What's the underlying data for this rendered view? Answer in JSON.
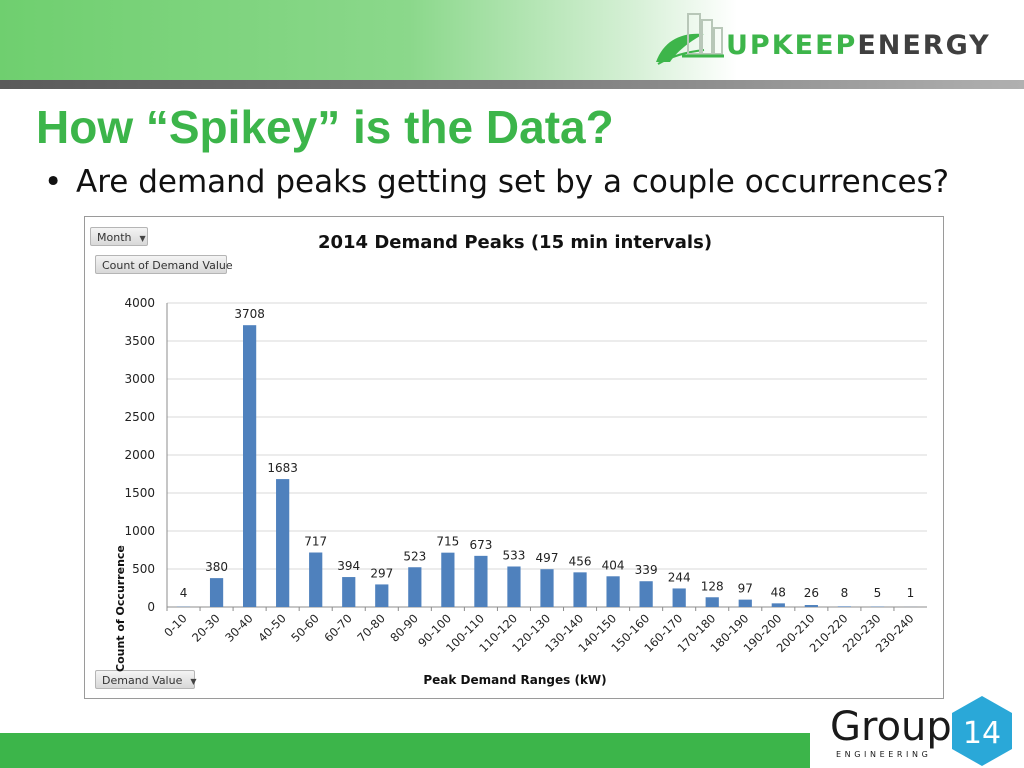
{
  "header": {
    "logo_brand_part1": "UPKEEP",
    "logo_brand_part2": "ENERGY",
    "logo_icon": "building-leaf-icon"
  },
  "slide": {
    "title": "How “Spikey” is the Data?",
    "bullet": "Are demand peaks getting set by a couple occurrences?"
  },
  "pivot_controls": {
    "month_filter_label": "Month",
    "value_field_label": "Count of Demand Value",
    "axis_field_label": "Demand Value"
  },
  "footer": {
    "logo_word": "Group",
    "logo_number": "14",
    "logo_sub": "ENGINEERING"
  },
  "colors": {
    "bar": "#4f81bd",
    "title_green": "#3cb54a",
    "grid": "#d9d9d9"
  },
  "chart_data": {
    "type": "bar",
    "title": "2014 Demand Peaks (15 min intervals)",
    "xlabel": "Peak Demand Ranges (kW)",
    "ylabel": "Count of Occurrence",
    "ylim": [
      0,
      4000
    ],
    "yticks": [
      0,
      500,
      1000,
      1500,
      2000,
      2500,
      3000,
      3500,
      4000
    ],
    "grid": true,
    "categories": [
      "0-10",
      "20-30",
      "30-40",
      "40-50",
      "50-60",
      "60-70",
      "70-80",
      "80-90",
      "90-100",
      "100-110",
      "110-120",
      "120-130",
      "130-140",
      "140-150",
      "150-160",
      "160-170",
      "170-180",
      "180-190",
      "190-200",
      "200-210",
      "210-220",
      "220-230",
      "230-240"
    ],
    "values": [
      4,
      380,
      3708,
      1683,
      717,
      394,
      297,
      523,
      715,
      673,
      533,
      497,
      456,
      404,
      339,
      244,
      128,
      97,
      48,
      26,
      8,
      5,
      1
    ]
  }
}
